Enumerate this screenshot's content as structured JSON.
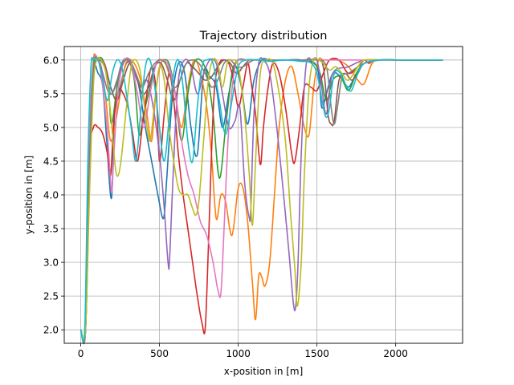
{
  "chart_data": {
    "type": "line",
    "title": "Trajectory distribution",
    "xlabel": "x-position in [m]",
    "ylabel": "y-position in [m]",
    "xlim": [
      -105,
      2425
    ],
    "ylim": [
      1.8,
      6.2
    ],
    "xticks": [
      0,
      500,
      1000,
      1500,
      2000
    ],
    "yticks": [
      2.0,
      2.5,
      3.0,
      3.5,
      4.0,
      4.5,
      5.0,
      5.5,
      6.0
    ],
    "xtick_labels": [
      "0",
      "500",
      "1000",
      "1500",
      "2000"
    ],
    "ytick_labels": [
      "2.0",
      "2.5",
      "3.0",
      "3.5",
      "4.0",
      "4.5",
      "5.0",
      "5.5",
      "6.0"
    ],
    "grid": true,
    "colors": [
      "#1f77b4",
      "#ff7f0e",
      "#2ca02c",
      "#d62728",
      "#9467bd",
      "#8c564b",
      "#e377c2",
      "#7f7f7f",
      "#bcbd22",
      "#17becf"
    ],
    "series": [
      {
        "color": "#1f77b4",
        "x": [
          0,
          30,
          55,
          80,
          110,
          140,
          165,
          195,
          215,
          250,
          290,
          330,
          370,
          410,
          450,
          490,
          525,
          545,
          580,
          620,
          660,
          700,
          740,
          780,
          820,
          860,
          900,
          940,
          980,
          1020,
          1060,
          1100,
          1150,
          1200,
          1300,
          1400,
          1500,
          1530,
          1560,
          1600,
          1650,
          1700,
          1750,
          1800,
          1900,
          2000,
          2200,
          2300
        ],
        "y": [
          2.0,
          2.0,
          4.2,
          5.8,
          5.8,
          5.6,
          4.8,
          3.95,
          5.2,
          5.6,
          5.95,
          5.9,
          5.6,
          5.0,
          4.5,
          4.0,
          3.65,
          4.2,
          5.4,
          5.95,
          5.8,
          5.0,
          4.6,
          5.8,
          5.75,
          5.6,
          5.0,
          5.5,
          5.9,
          5.6,
          5.05,
          5.7,
          6.0,
          6.0,
          6.0,
          6.0,
          5.9,
          5.3,
          5.5,
          5.8,
          5.75,
          5.6,
          5.8,
          5.95,
          6.0,
          6.0,
          6.0,
          6.0
        ]
      },
      {
        "color": "#ff7f0e",
        "x": [
          0,
          30,
          55,
          80,
          100,
          130,
          160,
          190,
          230,
          270,
          300,
          340,
          380,
          420,
          450,
          480,
          520,
          560,
          600,
          640,
          680,
          720,
          760,
          800,
          830,
          860,
          890,
          920,
          960,
          1000,
          1030,
          1060,
          1090,
          1110,
          1130,
          1150,
          1170,
          1200,
          1230,
          1260,
          1300,
          1340,
          1380,
          1420,
          1450,
          1480,
          1510,
          1540,
          1580,
          1630,
          1700,
          1760,
          1800,
          1850,
          1900,
          2000,
          2200,
          2300
        ],
        "y": [
          2.0,
          2.0,
          4.8,
          6.0,
          6.0,
          5.9,
          5.4,
          4.8,
          5.2,
          5.8,
          6.0,
          5.95,
          5.7,
          5.2,
          4.8,
          5.6,
          6.0,
          5.8,
          5.5,
          5.0,
          5.6,
          6.0,
          5.8,
          5.3,
          4.6,
          3.65,
          4.0,
          3.9,
          3.4,
          4.1,
          4.1,
          3.6,
          2.7,
          2.15,
          2.8,
          2.78,
          2.65,
          3.0,
          4.0,
          5.0,
          5.7,
          5.9,
          5.5,
          5.0,
          4.9,
          5.6,
          6.0,
          6.0,
          6.0,
          6.0,
          5.9,
          5.7,
          5.65,
          5.95,
          6.0,
          6.0,
          6.0,
          6.0
        ]
      },
      {
        "color": "#2ca02c",
        "x": [
          0,
          30,
          55,
          80,
          100,
          140,
          175,
          195,
          230,
          260,
          300,
          340,
          370,
          400,
          440,
          480,
          520,
          560,
          600,
          640,
          680,
          720,
          760,
          800,
          840,
          880,
          920,
          960,
          1000,
          1060,
          1100,
          1200,
          1300,
          1400,
          1480,
          1520,
          1560,
          1600,
          1650,
          1700,
          1750,
          1800,
          1900,
          2000,
          2200,
          2300
        ],
        "y": [
          2.0,
          2.0,
          4.5,
          5.8,
          6.0,
          6.0,
          5.6,
          5.05,
          5.6,
          5.95,
          6.0,
          5.7,
          4.9,
          5.2,
          5.6,
          5.95,
          6.0,
          5.95,
          5.5,
          4.8,
          5.5,
          5.95,
          6.0,
          5.8,
          5.2,
          4.25,
          5.0,
          5.8,
          6.0,
          6.0,
          6.0,
          6.0,
          6.0,
          6.0,
          5.95,
          5.8,
          5.4,
          5.7,
          5.75,
          5.55,
          5.8,
          5.95,
          6.0,
          6.0,
          6.0,
          6.0
        ]
      },
      {
        "color": "#d62728",
        "x": [
          0,
          30,
          55,
          80,
          110,
          140,
          170,
          190,
          210,
          240,
          270,
          300,
          330,
          360,
          390,
          420,
          450,
          480,
          500,
          530,
          560,
          590,
          620,
          650,
          680,
          710,
          740,
          770,
          790,
          810,
          830,
          850,
          880,
          910,
          940,
          970,
          1000,
          1030,
          1060,
          1080,
          1110,
          1140,
          1160,
          1190,
          1220,
          1260,
          1300,
          1340,
          1360,
          1390,
          1420,
          1460,
          1500,
          1540,
          1580,
          1640,
          1700,
          1760,
          1800,
          1830,
          1860,
          1900,
          2000,
          2200,
          2300
        ],
        "y": [
          2.0,
          2.0,
          4.5,
          5.0,
          5.0,
          4.9,
          4.6,
          4.3,
          5.1,
          5.55,
          5.5,
          5.3,
          4.9,
          4.5,
          5.0,
          5.5,
          5.9,
          5.5,
          4.5,
          5.2,
          5.8,
          5.4,
          4.6,
          4.0,
          3.5,
          3.0,
          2.5,
          2.1,
          2.02,
          3.2,
          4.6,
          5.6,
          5.95,
          6.0,
          5.95,
          5.7,
          5.3,
          5.6,
          5.95,
          5.7,
          5.2,
          4.45,
          5.0,
          5.6,
          5.95,
          5.8,
          5.3,
          4.6,
          4.5,
          5.0,
          5.6,
          5.6,
          5.55,
          5.8,
          6.0,
          6.0,
          5.8,
          5.9,
          6.0,
          5.95,
          6.0,
          6.0,
          6.0,
          6.0,
          6.0
        ]
      },
      {
        "color": "#9467bd",
        "x": [
          0,
          30,
          55,
          80,
          110,
          140,
          180,
          220,
          260,
          300,
          340,
          380,
          420,
          460,
          500,
          530,
          555,
          565,
          590,
          620,
          660,
          700,
          740,
          780,
          820,
          860,
          900,
          940,
          980,
          1010,
          1040,
          1070,
          1080,
          1100,
          1130,
          1160,
          1200,
          1240,
          1280,
          1320,
          1350,
          1365,
          1380,
          1400,
          1430,
          1470,
          1500,
          1530,
          1560,
          1600,
          1700,
          1800,
          1900,
          2000,
          2200,
          2300
        ],
        "y": [
          2.0,
          2.0,
          4.5,
          5.9,
          6.0,
          5.8,
          5.5,
          5.6,
          5.95,
          6.0,
          5.8,
          5.6,
          5.7,
          5.3,
          4.6,
          3.8,
          2.98,
          3.1,
          4.5,
          5.7,
          6.0,
          5.9,
          5.5,
          5.8,
          6.0,
          5.95,
          5.5,
          5.0,
          5.1,
          5.3,
          4.2,
          3.66,
          3.8,
          5.2,
          5.95,
          6.0,
          5.8,
          5.1,
          4.2,
          3.2,
          2.4,
          2.35,
          3.0,
          4.6,
          5.9,
          6.0,
          6.0,
          5.6,
          5.2,
          5.8,
          5.9,
          6.0,
          6.0,
          6.0,
          6.0,
          6.0
        ]
      },
      {
        "color": "#8c564b",
        "x": [
          0,
          30,
          55,
          80,
          110,
          150,
          190,
          230,
          270,
          310,
          350,
          390,
          430,
          470,
          510,
          550,
          590,
          630,
          670,
          710,
          750,
          790,
          830,
          870,
          910,
          950,
          990,
          1030,
          1070,
          1110,
          1150,
          1200,
          1300,
          1400,
          1500,
          1540,
          1570,
          1590,
          1610,
          1640,
          1680,
          1720,
          1760,
          1800,
          1900,
          2000,
          2200,
          2300
        ],
        "y": [
          2.0,
          2.0,
          4.6,
          5.9,
          6.0,
          5.95,
          5.6,
          5.4,
          5.7,
          5.95,
          5.8,
          5.5,
          5.6,
          5.9,
          5.95,
          5.7,
          5.4,
          5.7,
          5.95,
          5.9,
          5.8,
          5.7,
          5.75,
          5.9,
          6.0,
          5.95,
          5.8,
          5.9,
          6.0,
          6.0,
          6.0,
          6.0,
          6.0,
          6.0,
          6.0,
          5.9,
          5.2,
          5.05,
          5.1,
          5.7,
          5.8,
          5.7,
          5.8,
          5.95,
          6.0,
          6.0,
          6.0,
          6.0
        ]
      },
      {
        "color": "#e377c2",
        "x": [
          0,
          30,
          55,
          80,
          110,
          140,
          170,
          195,
          210,
          240,
          280,
          320,
          360,
          400,
          440,
          480,
          520,
          560,
          600,
          640,
          680,
          720,
          760,
          800,
          840,
          870,
          890,
          910,
          940,
          980,
          1020,
          1060,
          1100,
          1200,
          1300,
          1400,
          1500,
          1600,
          1700,
          1800,
          1900,
          2000,
          2200,
          2300
        ],
        "y": [
          2.0,
          2.0,
          4.8,
          5.95,
          6.0,
          5.6,
          4.9,
          4.05,
          4.6,
          5.6,
          6.0,
          5.95,
          5.5,
          5.0,
          5.5,
          5.95,
          6.0,
          5.9,
          5.5,
          4.8,
          4.3,
          4.0,
          3.6,
          3.4,
          3.0,
          2.6,
          2.55,
          3.5,
          5.0,
          5.9,
          6.0,
          6.0,
          6.0,
          6.0,
          6.0,
          6.0,
          6.0,
          6.0,
          6.0,
          6.0,
          6.0,
          6.0,
          6.0,
          6.0
        ]
      },
      {
        "color": "#7f7f7f",
        "x": [
          0,
          30,
          55,
          80,
          110,
          150,
          190,
          230,
          270,
          310,
          350,
          390,
          430,
          470,
          510,
          550,
          590,
          630,
          670,
          710,
          750,
          790,
          830,
          870,
          910,
          950,
          990,
          1030,
          1100,
          1200,
          1300,
          1400,
          1500,
          1560,
          1590,
          1610,
          1630,
          1660,
          1700,
          1760,
          1800,
          1900,
          2000,
          2200,
          2300
        ],
        "y": [
          2.0,
          2.0,
          4.5,
          5.9,
          6.0,
          5.9,
          5.5,
          5.7,
          5.95,
          6.0,
          5.8,
          5.6,
          5.8,
          5.95,
          6.0,
          5.9,
          5.6,
          5.7,
          5.95,
          6.0,
          5.95,
          5.8,
          5.6,
          5.7,
          5.95,
          6.0,
          5.9,
          5.9,
          6.0,
          6.0,
          6.0,
          6.0,
          6.0,
          5.9,
          5.3,
          5.05,
          5.3,
          5.75,
          5.8,
          5.9,
          5.95,
          6.0,
          6.0,
          6.0,
          6.0
        ]
      },
      {
        "color": "#bcbd22",
        "x": [
          0,
          30,
          55,
          80,
          100,
          130,
          160,
          190,
          220,
          240,
          260,
          290,
          320,
          350,
          380,
          410,
          440,
          470,
          500,
          530,
          560,
          590,
          620,
          650,
          680,
          710,
          730,
          750,
          780,
          810,
          840,
          870,
          900,
          930,
          960,
          1000,
          1040,
          1070,
          1090,
          1110,
          1140,
          1180,
          1220,
          1260,
          1300,
          1330,
          1360,
          1375,
          1400,
          1420,
          1450,
          1480,
          1510,
          1540,
          1580,
          1620,
          1660,
          1700,
          1760,
          1800,
          1900,
          2000,
          2200,
          2300
        ],
        "y": [
          2.0,
          2.0,
          4.0,
          5.6,
          6.0,
          6.0,
          5.8,
          5.2,
          4.4,
          4.3,
          4.6,
          5.3,
          5.9,
          6.0,
          5.8,
          5.2,
          4.8,
          5.4,
          5.9,
          5.7,
          5.0,
          4.5,
          4.1,
          4.0,
          4.0,
          3.8,
          3.7,
          3.9,
          4.8,
          5.7,
          6.0,
          5.95,
          5.6,
          5.95,
          6.0,
          5.9,
          5.2,
          4.3,
          3.55,
          4.5,
          5.8,
          6.0,
          5.95,
          5.5,
          4.8,
          3.8,
          2.9,
          2.35,
          3.0,
          4.3,
          5.6,
          6.0,
          6.0,
          5.95,
          5.85,
          5.9,
          5.8,
          5.7,
          5.9,
          6.0,
          6.0,
          6.0,
          6.0,
          6.0
        ]
      },
      {
        "color": "#17becf",
        "x": [
          0,
          25,
          45,
          65,
          80,
          110,
          140,
          170,
          200,
          230,
          260,
          290,
          320,
          350,
          380,
          410,
          440,
          470,
          500,
          530,
          560,
          590,
          620,
          650,
          680,
          710,
          740,
          770,
          800,
          840,
          880,
          920,
          960,
          1000,
          1050,
          1100,
          1150,
          1200,
          1300,
          1400,
          1460,
          1500,
          1540,
          1560,
          1580,
          1610,
          1650,
          1690,
          1720,
          1760,
          1800,
          1900,
          2000,
          2200,
          2300
        ],
        "y": [
          2.0,
          2.0,
          4.5,
          5.9,
          6.0,
          6.0,
          5.7,
          5.4,
          5.8,
          6.0,
          5.9,
          5.5,
          5.0,
          4.5,
          5.2,
          5.9,
          6.0,
          5.6,
          5.0,
          4.5,
          5.1,
          5.8,
          6.0,
          5.6,
          4.8,
          4.5,
          5.3,
          5.9,
          6.0,
          5.95,
          5.4,
          4.9,
          5.4,
          5.9,
          6.0,
          6.0,
          6.0,
          5.98,
          6.0,
          5.98,
          5.96,
          5.8,
          5.3,
          5.15,
          5.3,
          5.8,
          5.8,
          5.6,
          5.55,
          5.8,
          5.95,
          6.0,
          6.0,
          6.0,
          6.0
        ]
      }
    ]
  }
}
